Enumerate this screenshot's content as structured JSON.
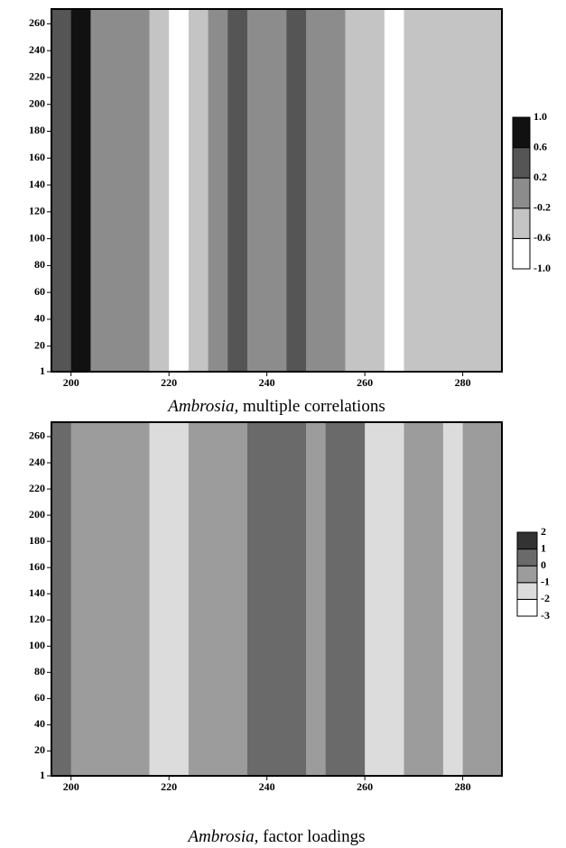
{
  "chart_data": [
    {
      "type": "contour",
      "caption_italic": "Ambrosia,",
      "caption": "multiple correlations",
      "xlim": [
        196,
        288
      ],
      "ylim": [
        1,
        271
      ],
      "xticks": [
        200,
        220,
        240,
        260,
        280
      ],
      "yticks": [
        1,
        20,
        40,
        60,
        80,
        100,
        120,
        140,
        160,
        180,
        200,
        220,
        240,
        260
      ],
      "x": [
        198,
        202,
        206,
        210,
        214,
        218,
        222,
        226,
        230,
        234,
        238,
        242,
        246,
        250,
        254,
        258,
        262,
        266,
        270,
        274,
        278,
        282,
        286
      ],
      "z": [
        0.3,
        0.7,
        0.1,
        0,
        -0.1,
        -0.4,
        -0.7,
        -0.3,
        0,
        0.3,
        0,
        0.1,
        0.4,
        0,
        -0.1,
        -0.3,
        -0.5,
        -0.7,
        -0.5,
        -0.3,
        -0.3,
        -0.3,
        -0.5
      ],
      "levels": [
        {
          "value": -1,
          "label": "-1.0"
        },
        -0.6,
        -0.2,
        0.2,
        0.6,
        {
          "value": 1,
          "label": "1.0"
        }
      ],
      "colors": [
        "#ffffff",
        "#c4c4c4",
        "#8c8c8c",
        "#555555",
        "#111111"
      ]
    },
    {
      "type": "contour",
      "caption_italic": "Ambrosia,",
      "caption": "factor loadings",
      "xlim": [
        196,
        288
      ],
      "ylim": [
        1,
        271
      ],
      "xticks": [
        200,
        220,
        240,
        260,
        280
      ],
      "yticks": [
        1,
        20,
        40,
        60,
        80,
        100,
        120,
        140,
        160,
        180,
        200,
        220,
        240,
        260
      ],
      "x": [
        198,
        202,
        206,
        210,
        214,
        218,
        222,
        226,
        230,
        234,
        238,
        242,
        246,
        250,
        254,
        258,
        262,
        266,
        270,
        274,
        278,
        282,
        286
      ],
      "z": [
        0.3,
        -0.5,
        -0.5,
        -0.3,
        -0.5,
        -1.2,
        -1.5,
        -0.8,
        -0.3,
        -0.5,
        0.3,
        0.5,
        0.3,
        -0.5,
        0.2,
        0.5,
        -1.2,
        -1.5,
        -0.5,
        -0.5,
        -1.2,
        -0.5,
        -0.5
      ],
      "levels": [
        -3,
        -2,
        -1,
        0,
        1,
        2
      ],
      "colors": [
        "#ffffff",
        "#dcdcdc",
        "#9c9c9c",
        "#6a6a6a",
        "#333333"
      ]
    }
  ]
}
